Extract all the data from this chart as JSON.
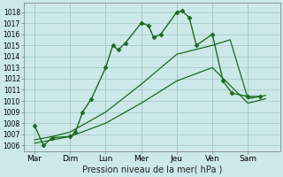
{
  "title": "",
  "xlabel": "Pression niveau de la mer( hPa )",
  "background_color": "#cde8e8",
  "grid_color": "#9ec8c8",
  "line_color": "#1a6b1a",
  "ylim": [
    1005.5,
    1018.8
  ],
  "yticks": [
    1006,
    1007,
    1008,
    1009,
    1010,
    1011,
    1012,
    1013,
    1014,
    1015,
    1016,
    1017,
    1018
  ],
  "day_labels": [
    "Mar",
    "Dim",
    "Lun",
    "Mer",
    "Jeu",
    "Ven",
    "Sam"
  ],
  "day_positions": [
    0,
    1,
    2,
    3,
    4,
    5,
    6
  ],
  "xlim": [
    -0.3,
    6.9
  ],
  "series": [
    {
      "x": [
        0.0,
        0.25,
        0.5,
        1.0,
        1.15,
        1.35,
        1.6,
        2.0,
        2.2,
        2.35,
        2.55,
        3.0,
        3.2,
        3.35,
        3.55,
        4.0,
        4.15,
        4.35,
        4.55,
        5.0,
        5.3,
        5.55,
        6.0,
        6.35
      ],
      "y": [
        1007.8,
        1006.0,
        1006.7,
        1006.8,
        1007.2,
        1009.0,
        1010.2,
        1013.0,
        1015.0,
        1014.6,
        1015.2,
        1017.0,
        1016.8,
        1015.7,
        1016.0,
        1018.0,
        1018.1,
        1017.5,
        1015.0,
        1016.0,
        1011.8,
        1010.7,
        1010.4,
        1010.4
      ],
      "marker": "D",
      "markersize": 2.5,
      "linewidth": 1.0,
      "linestyle": "-",
      "zorder": 3
    },
    {
      "x": [
        0.0,
        0.5,
        1.0,
        2.0,
        3.0,
        4.0,
        5.0,
        5.5,
        6.0,
        6.5
      ],
      "y": [
        1006.5,
        1006.8,
        1007.2,
        1009.0,
        1011.5,
        1014.2,
        1015.0,
        1015.5,
        1010.2,
        1010.5
      ],
      "marker": null,
      "markersize": 0,
      "linewidth": 0.9,
      "linestyle": "-",
      "zorder": 2
    },
    {
      "x": [
        0.0,
        0.5,
        1.0,
        2.0,
        3.0,
        4.0,
        5.0,
        6.0,
        6.5
      ],
      "y": [
        1006.2,
        1006.5,
        1006.8,
        1008.0,
        1009.8,
        1011.8,
        1013.0,
        1009.8,
        1010.2
      ],
      "marker": null,
      "markersize": 0,
      "linewidth": 0.9,
      "linestyle": "-",
      "zorder": 2
    }
  ]
}
